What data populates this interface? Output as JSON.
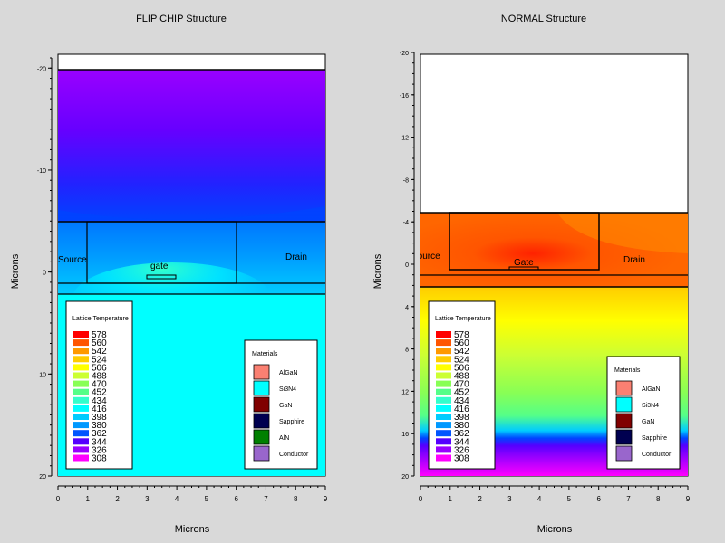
{
  "xlabel": "Microns",
  "ylabel": "Microns",
  "chart_data": [
    {
      "type": "heatmap",
      "title": "FLIP CHIP Structure",
      "xlabel": "Microns",
      "ylabel": "Microns",
      "xlim": [
        0,
        9
      ],
      "ylim": [
        -21,
        20
      ],
      "xticks": [
        "0",
        "1",
        "2",
        "3",
        "4",
        "5",
        "6",
        "7",
        "8",
        "9"
      ],
      "yticks": [
        {
          "value": -20,
          "label": "-20"
        },
        {
          "value": -10,
          "label": "-10"
        },
        {
          "value": 0,
          "label": "0"
        },
        {
          "value": 10,
          "label": "10"
        },
        {
          "value": 20,
          "label": "20"
        }
      ],
      "region_labels": {
        "source": "Source",
        "gate": "gate",
        "drain": "Drain"
      },
      "field": "Lattice Temperature",
      "field_range": [
        308,
        578
      ],
      "legend_materials": true
    },
    {
      "type": "heatmap",
      "title": "NORMAL Structure",
      "xlabel": "Microns",
      "ylabel": "Microns",
      "xlim": [
        0,
        9
      ],
      "ylim": [
        -20,
        20
      ],
      "xticks": [
        "0",
        "1",
        "2",
        "3",
        "4",
        "5",
        "6",
        "7",
        "8",
        "9"
      ],
      "yticks": [
        {
          "value": -20,
          "label": "-20"
        },
        {
          "value": -16,
          "label": "-16"
        },
        {
          "value": -12,
          "label": "-12"
        },
        {
          "value": -8,
          "label": "-8"
        },
        {
          "value": -4,
          "label": "-4"
        },
        {
          "value": 0,
          "label": "0"
        },
        {
          "value": 4,
          "label": "4"
        },
        {
          "value": 8,
          "label": "8"
        },
        {
          "value": 12,
          "label": "12"
        },
        {
          "value": 16,
          "label": "16"
        },
        {
          "value": 20,
          "label": "20"
        }
      ],
      "region_labels": {
        "source": "Source",
        "gate": "Gate",
        "drain": "Drain"
      },
      "field": "Lattice Temperature",
      "field_range": [
        308,
        578
      ],
      "legend_materials": true
    }
  ],
  "temp_legend": {
    "title": "Lattice Temperature",
    "levels": [
      "578",
      "560",
      "542",
      "524",
      "506",
      "488",
      "470",
      "452",
      "434",
      "416",
      "398",
      "380",
      "362",
      "344",
      "326",
      "308"
    ],
    "colors": [
      "#ff0000",
      "#ff5500",
      "#ff9900",
      "#ffcc00",
      "#ffff00",
      "#ccff33",
      "#88ff55",
      "#55ff88",
      "#33ffcc",
      "#00ffff",
      "#00ccff",
      "#0099ff",
      "#0055ff",
      "#5500ff",
      "#9900ff",
      "#ff00ff"
    ]
  },
  "materials_legend": {
    "title": "Materials",
    "items": [
      {
        "name": "AlGaN",
        "color": "#fa8072"
      },
      {
        "name": "Si3N4",
        "color": "#00ffff"
      },
      {
        "name": "GaN",
        "color": "#800000"
      },
      {
        "name": "Sapphire",
        "color": "#000050"
      },
      {
        "name": "AlN",
        "color": "#008000"
      },
      {
        "name": "Conductor",
        "color": "#9966cc"
      }
    ]
  },
  "materials_legend_right": {
    "items": [
      {
        "name": "AlGaN",
        "color": "#fa8072"
      },
      {
        "name": "Si3N4",
        "color": "#00ffff"
      },
      {
        "name": "GaN",
        "color": "#800000"
      },
      {
        "name": "Sapphire",
        "color": "#000050"
      },
      {
        "name": "Conductor",
        "color": "#9966cc"
      }
    ]
  }
}
